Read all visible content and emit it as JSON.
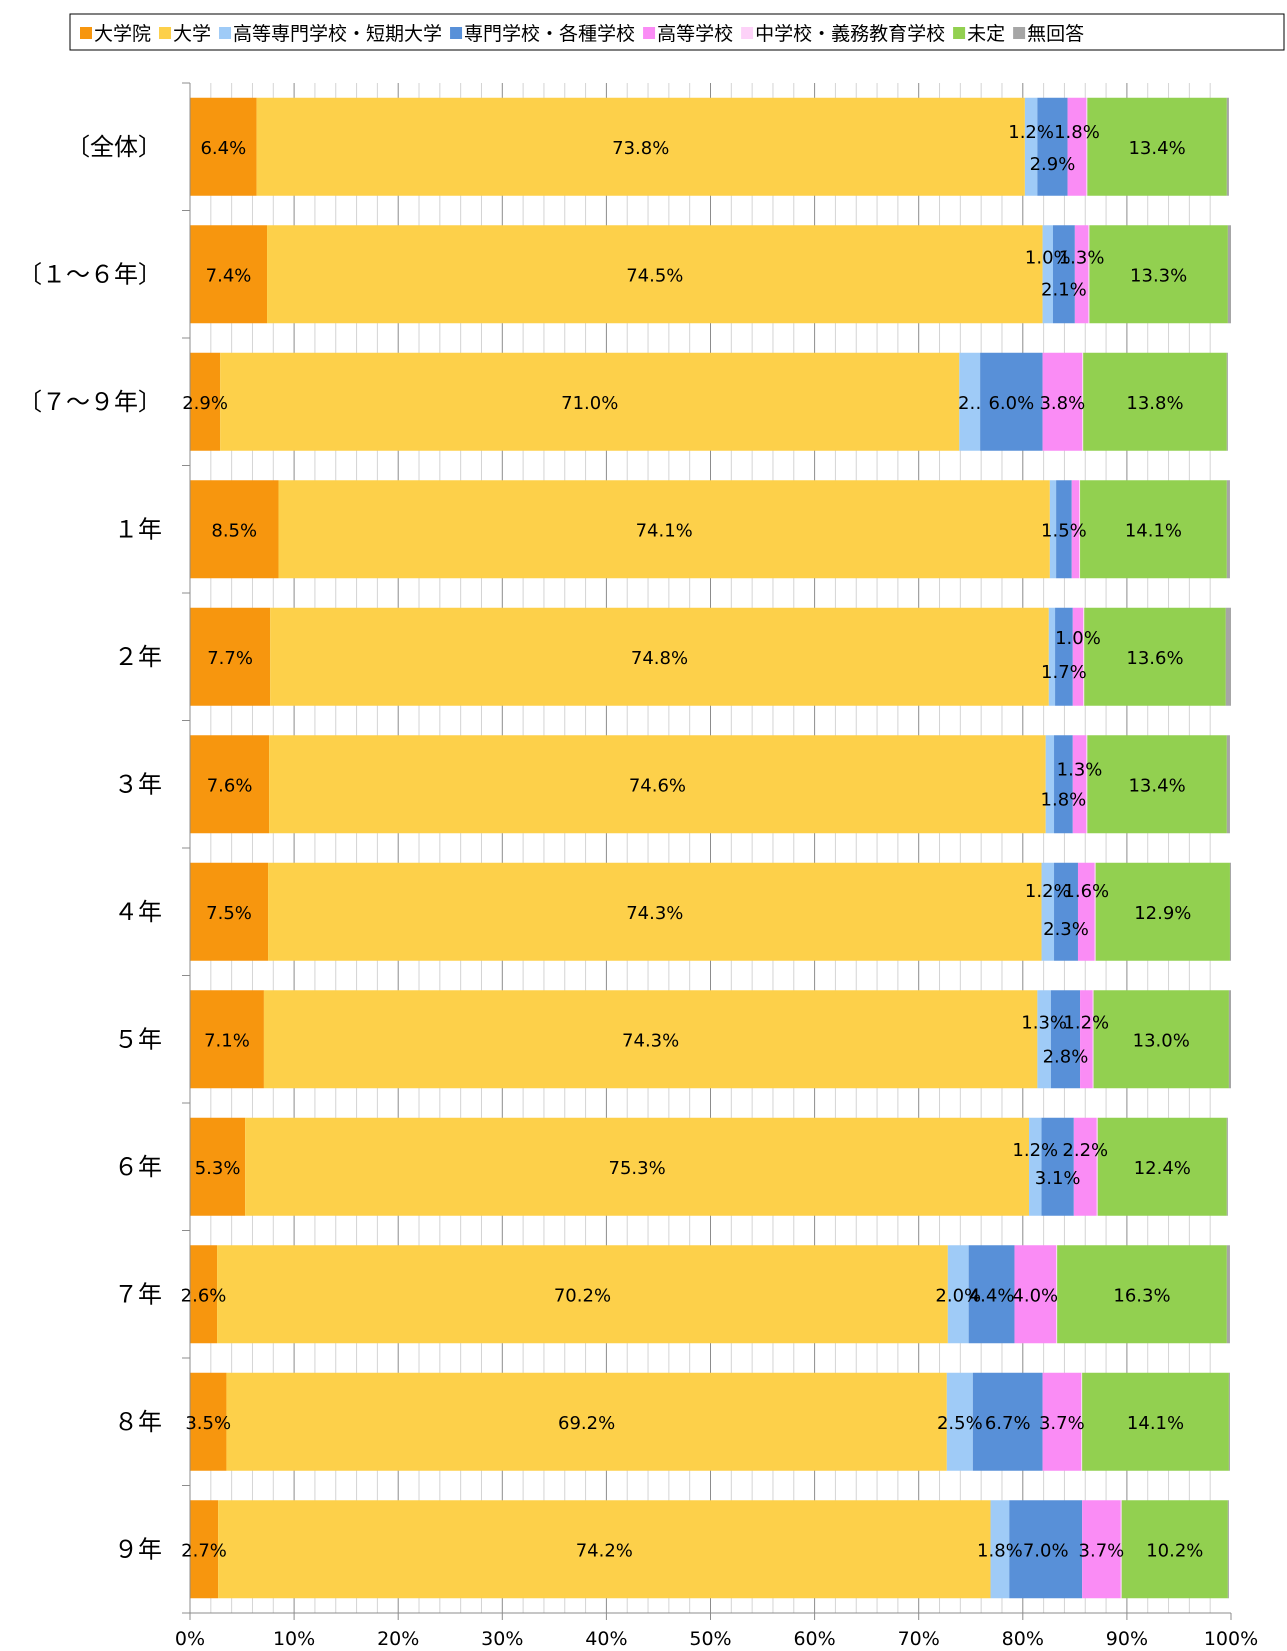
{
  "chart_data": {
    "type": "bar",
    "orientation": "horizontal",
    "stacked": "percent",
    "legend_position": "top",
    "grid": true,
    "xlim": [
      0,
      100
    ],
    "x_ticks": [
      "0%",
      "10%",
      "20%",
      "30%",
      "40%",
      "50%",
      "60%",
      "70%",
      "80%",
      "90%",
      "100%"
    ],
    "categories": [
      "〔全体〕",
      "〔１～６年〕",
      "〔７～９年〕",
      "１年",
      "２年",
      "３年",
      "４年",
      "５年",
      "６年",
      "７年",
      "８年",
      "９年"
    ],
    "series": [
      {
        "name": "大学院",
        "color": "#F7960E",
        "values": [
          6.4,
          7.4,
          2.9,
          8.5,
          7.7,
          7.6,
          7.5,
          7.1,
          5.3,
          2.6,
          3.5,
          2.7
        ]
      },
      {
        "name": "大学",
        "color": "#FDD04A",
        "values": [
          73.8,
          74.5,
          71.0,
          74.1,
          74.8,
          74.6,
          74.3,
          74.3,
          75.3,
          70.2,
          69.2,
          74.2
        ]
      },
      {
        "name": "高等専門学校・短期大学",
        "color": "#9FCBF7",
        "values": [
          1.2,
          1.0,
          2.0,
          0.6,
          0.6,
          0.8,
          1.2,
          1.3,
          1.2,
          2.0,
          2.5,
          1.8
        ]
      },
      {
        "name": "専門学校・各種学校",
        "color": "#5890D8",
        "values": [
          2.9,
          2.1,
          6.0,
          1.5,
          1.7,
          1.8,
          2.3,
          2.8,
          3.1,
          4.4,
          6.7,
          7.0
        ]
      },
      {
        "name": "高等学校",
        "color": "#FA8CF5",
        "values": [
          1.8,
          1.3,
          3.8,
          0.7,
          1.0,
          1.3,
          1.6,
          1.2,
          2.2,
          4.0,
          3.7,
          3.7
        ]
      },
      {
        "name": "中学校・義務教育学校",
        "color": "#FDD2F8",
        "values": [
          0.1,
          0.1,
          0.1,
          0.1,
          0.1,
          0.1,
          0.1,
          0.1,
          0.1,
          0.1,
          0.1,
          0.1
        ]
      },
      {
        "name": "未定",
        "color": "#92D050",
        "values": [
          13.4,
          13.3,
          13.8,
          14.1,
          13.6,
          13.4,
          12.9,
          13.0,
          12.4,
          16.3,
          14.1,
          10.2
        ]
      },
      {
        "name": "無回答",
        "color": "#A6A6A6",
        "values": [
          0.2,
          0.3,
          0.1,
          0.3,
          0.5,
          0.3,
          0.1,
          0.2,
          0.1,
          0.3,
          0.1,
          0.1
        ]
      }
    ],
    "data_labels": [
      [
        {
          "text": "6.4%",
          "series": 0,
          "dy": 0
        },
        {
          "text": "73.8%",
          "series": 1,
          "dy": 0
        },
        {
          "text": "1.2%",
          "series": 2,
          "dy": -16
        },
        {
          "text": "2.9%",
          "series": 3,
          "dy": 16
        },
        {
          "text": "1.8%",
          "series": 4,
          "dy": -16
        },
        {
          "text": "13.4%",
          "series": 6,
          "dy": 0
        }
      ],
      [
        {
          "text": "7.4%",
          "series": 0,
          "dy": 0
        },
        {
          "text": "74.5%",
          "series": 1,
          "dy": 0
        },
        {
          "text": "1.0%",
          "series": 2,
          "dy": -18
        },
        {
          "text": "2.1%",
          "series": 3,
          "dy": 14
        },
        {
          "text": "1.3%",
          "series": 4,
          "dy": -18
        },
        {
          "text": "13.3%",
          "series": 6,
          "dy": 0
        }
      ],
      [
        {
          "text": "2.9%",
          "series": 0,
          "dy": 0
        },
        {
          "text": "71.0%",
          "series": 1,
          "dy": 0
        },
        {
          "text": "2‥",
          "series": 2,
          "dy": 0
        },
        {
          "text": "6.0%",
          "series": 3,
          "dy": 0
        },
        {
          "text": "3.8%",
          "series": 4,
          "dy": 0
        },
        {
          "text": "13.8%",
          "series": 6,
          "dy": 0
        }
      ],
      [
        {
          "text": "8.5%",
          "series": 0,
          "dy": 0
        },
        {
          "text": "74.1%",
          "series": 1,
          "dy": 0
        },
        {
          "text": "1.5%",
          "series": 3,
          "dy": 0
        },
        {
          "text": "14.1%",
          "series": 6,
          "dy": 0
        }
      ],
      [
        {
          "text": "7.7%",
          "series": 0,
          "dy": 0
        },
        {
          "text": "74.8%",
          "series": 1,
          "dy": 0
        },
        {
          "text": "1.7%",
          "series": 3,
          "dy": 14
        },
        {
          "text": "1.0%",
          "series": 4,
          "dy": -20
        },
        {
          "text": "13.6%",
          "series": 6,
          "dy": 0
        }
      ],
      [
        {
          "text": "7.6%",
          "series": 0,
          "dy": 0
        },
        {
          "text": "74.6%",
          "series": 1,
          "dy": 0
        },
        {
          "text": "1.8%",
          "series": 3,
          "dy": 14
        },
        {
          "text": "1.3%",
          "series": 4,
          "dy": -16
        },
        {
          "text": "13.4%",
          "series": 6,
          "dy": 0
        }
      ],
      [
        {
          "text": "7.5%",
          "series": 0,
          "dy": 0
        },
        {
          "text": "74.3%",
          "series": 1,
          "dy": 0
        },
        {
          "text": "1.2%",
          "series": 2,
          "dy": -22
        },
        {
          "text": "2.3%",
          "series": 3,
          "dy": 16
        },
        {
          "text": "1.6%",
          "series": 4,
          "dy": -22
        },
        {
          "text": "12.9%",
          "series": 6,
          "dy": 0
        }
      ],
      [
        {
          "text": "7.1%",
          "series": 0,
          "dy": 0
        },
        {
          "text": "74.3%",
          "series": 1,
          "dy": 0
        },
        {
          "text": "1.3%",
          "series": 2,
          "dy": -18
        },
        {
          "text": "2.8%",
          "series": 3,
          "dy": 16
        },
        {
          "text": "1.2%",
          "series": 4,
          "dy": -18
        },
        {
          "text": "13.0%",
          "series": 6,
          "dy": 0
        }
      ],
      [
        {
          "text": "5.3%",
          "series": 0,
          "dy": 0
        },
        {
          "text": "75.3%",
          "series": 1,
          "dy": 0
        },
        {
          "text": "1.2%",
          "series": 2,
          "dy": -18
        },
        {
          "text": "3.1%",
          "series": 3,
          "dy": 10
        },
        {
          "text": "2.2%",
          "series": 4,
          "dy": -18
        },
        {
          "text": "12.4%",
          "series": 6,
          "dy": 0
        }
      ],
      [
        {
          "text": "2.6%",
          "series": 0,
          "dy": 0
        },
        {
          "text": "70.2%",
          "series": 1,
          "dy": 0
        },
        {
          "text": "2.0%",
          "series": 2,
          "dy": 0
        },
        {
          "text": "4.4%",
          "series": 3,
          "dy": 0
        },
        {
          "text": "4.0%",
          "series": 4,
          "dy": 0
        },
        {
          "text": "16.3%",
          "series": 6,
          "dy": 0
        }
      ],
      [
        {
          "text": "3.5%",
          "series": 0,
          "dy": 0
        },
        {
          "text": "69.2%",
          "series": 1,
          "dy": 0
        },
        {
          "text": "2.5%",
          "series": 2,
          "dy": 0
        },
        {
          "text": "6.7%",
          "series": 3,
          "dy": 0
        },
        {
          "text": "3.7%",
          "series": 4,
          "dy": 0
        },
        {
          "text": "14.1%",
          "series": 6,
          "dy": 0
        }
      ],
      [
        {
          "text": "2.7%",
          "series": 0,
          "dy": 0
        },
        {
          "text": "74.2%",
          "series": 1,
          "dy": 0
        },
        {
          "text": "1.8%",
          "series": 2,
          "dy": 0
        },
        {
          "text": "7.0%",
          "series": 3,
          "dy": 0
        },
        {
          "text": "3.7%",
          "series": 4,
          "dy": 0
        },
        {
          "text": "10.2%",
          "series": 6,
          "dy": 0
        }
      ]
    ]
  }
}
